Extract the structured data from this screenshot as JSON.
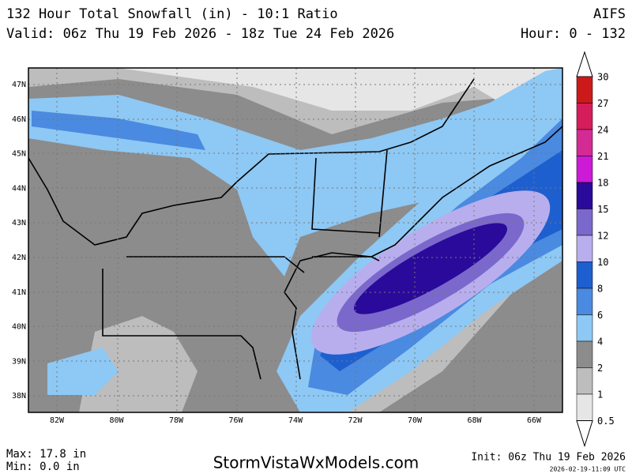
{
  "header": {
    "title": "132 Hour Total Snowfall (in) - 10:1 Ratio",
    "model": "AIFS",
    "valid": "Valid: 06z Thu 19 Feb 2026 - 18z Tue 24 Feb 2026",
    "hour": "Hour: 0 - 132"
  },
  "map": {
    "lat_labels": [
      "47N",
      "46N",
      "45N",
      "44N",
      "43N",
      "42N",
      "41N",
      "40N",
      "39N",
      "38N"
    ],
    "lon_labels": [
      "82W",
      "80W",
      "78W",
      "76W",
      "74W",
      "72W",
      "70W",
      "68W",
      "66W"
    ]
  },
  "legend": {
    "levels": [
      {
        "label": "30",
        "color": "#cc1a1a"
      },
      {
        "label": "27",
        "color": "#d61d5c"
      },
      {
        "label": "24",
        "color": "#d42a94"
      },
      {
        "label": "21",
        "color": "#cc1ad6"
      },
      {
        "label": "18",
        "color": "#2a0a9a"
      },
      {
        "label": "15",
        "color": "#7b68cc"
      },
      {
        "label": "12",
        "color": "#b8aeee"
      },
      {
        "label": "10",
        "color": "#1e5fd0"
      },
      {
        "label": "8",
        "color": "#4a8ae0"
      },
      {
        "label": "6",
        "color": "#8ec8f4"
      },
      {
        "label": "4",
        "color": "#8c8c8c"
      },
      {
        "label": "2",
        "color": "#bdbdbd"
      },
      {
        "label": "1",
        "color": "#e6e6e6"
      },
      {
        "label": "0.5",
        "color": "#ffffff"
      }
    ]
  },
  "footer": {
    "max": "Max: 17.8 in",
    "min": "Min: 0.0 in",
    "site": "StormVistaWxModels.com",
    "init": "Init: 06z Thu 19 Feb 2026",
    "stamp": "2026-02-19-11:09 UTC"
  }
}
